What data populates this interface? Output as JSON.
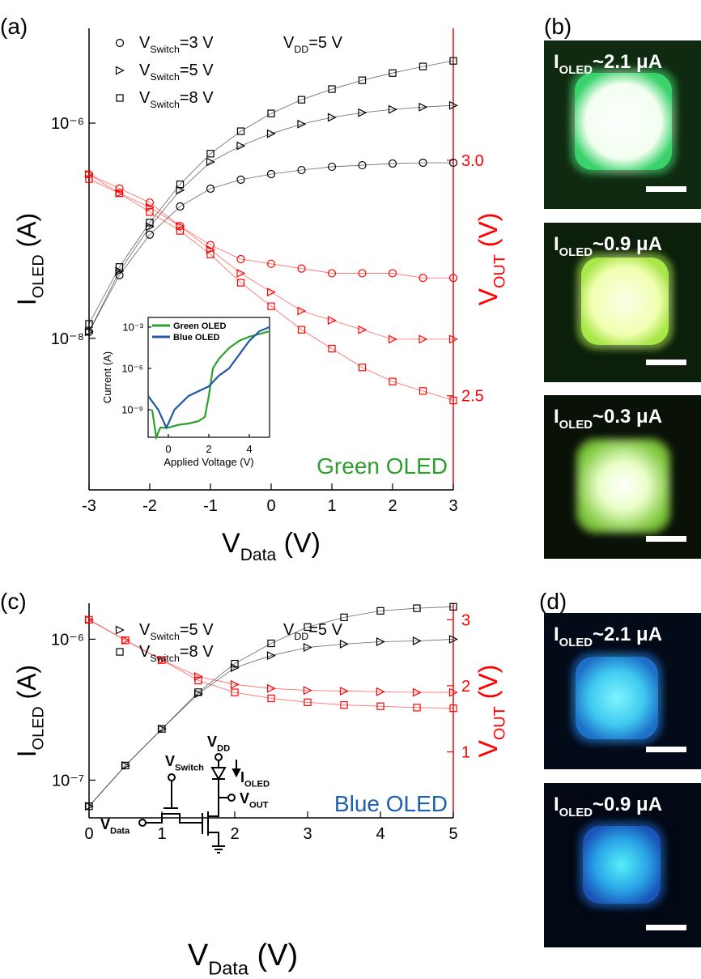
{
  "chart_data": [
    {
      "type": "scatter",
      "title": "(a)",
      "xlabel": [
        "V",
        "Data",
        " (V)"
      ],
      "ylabel": [
        "I",
        "OLED",
        " (A)"
      ],
      "y2label": [
        "V",
        "OUT",
        " (V)"
      ],
      "x": [
        -3,
        -2.5,
        -2,
        -1.5,
        -1,
        -0.5,
        0,
        0.5,
        1,
        1.5,
        2,
        2.5,
        3
      ],
      "xlim": [
        -3,
        3
      ],
      "xticks": [
        -3,
        -2,
        -1,
        0,
        1,
        2,
        3
      ],
      "yscale": "log",
      "ylim": [
        3.9e-10,
        7.6e-06
      ],
      "yticks": [
        {
          "value": 1e-06,
          "label": "10⁻⁶"
        },
        {
          "value": 1e-08,
          "label": "10⁻⁸"
        }
      ],
      "y2lim": [
        2.3,
        3.28
      ],
      "y2ticks": [
        2.5,
        {
          "value": 3,
          "label": "3.0"
        }
      ],
      "y2color": "#ff0000",
      "legend_note": [
        "V",
        "DD",
        "=5 V"
      ],
      "annotation": "Green OLED",
      "annotation_color": "#2ca02c",
      "series": [
        {
          "name": [
            "V",
            "Switch",
            "=3 V"
          ],
          "marker": "circle",
          "color": "#000000",
          "values": [
            1.15e-08,
            3.86e-08,
            9.2e-08,
            1.68e-07,
            2.46e-07,
            2.98e-07,
            3.36e-07,
            3.66e-07,
            3.93e-07,
            4.06e-07,
            4.21e-07,
            4.28e-07,
            4.28e-07
          ]
        },
        {
          "name": [
            "V",
            "Switch",
            "=5 V"
          ],
          "marker": "triangle",
          "color": "#000000",
          "values": [
            1.15e-08,
            4.2e-08,
            1.09e-07,
            2.38e-07,
            4.36e-07,
            6.15e-07,
            7.98e-07,
            9.8e-07,
            1.13e-06,
            1.25e-06,
            1.34e-06,
            1.41e-06,
            1.46e-06
          ]
        },
        {
          "name": [
            "V",
            "Switch",
            "=8 V"
          ],
          "marker": "square",
          "color": "#000000",
          "values": [
            1.36e-08,
            4.6e-08,
            1.19e-07,
            2.7e-07,
            5.2e-07,
            8.4e-07,
            1.23e-06,
            1.65e-06,
            2.07e-06,
            2.5e-06,
            2.92e-06,
            3.36e-06,
            3.79e-06
          ]
        },
        {
          "marker": "circle",
          "color": "#ff0000",
          "axis": "y2",
          "values": [
            2.97,
            2.94,
            2.91,
            2.86,
            2.82,
            2.79,
            2.78,
            2.77,
            2.76,
            2.76,
            2.76,
            2.75,
            2.75
          ]
        },
        {
          "marker": "triangle",
          "color": "#ff0000",
          "axis": "y2",
          "values": [
            2.97,
            2.93,
            2.9,
            2.86,
            2.81,
            2.76,
            2.72,
            2.68,
            2.66,
            2.64,
            2.62,
            2.62,
            2.62
          ]
        },
        {
          "marker": "square",
          "color": "#ff0000",
          "axis": "y2",
          "values": [
            2.96,
            2.93,
            2.89,
            2.85,
            2.8,
            2.74,
            2.69,
            2.64,
            2.6,
            2.56,
            2.53,
            2.51,
            2.49
          ]
        }
      ]
    },
    {
      "type": "line",
      "xlabel": "Applied Voltage (V)",
      "ylabel": "Current (A)",
      "xlim": [
        -1,
        5
      ],
      "xticks": [
        0,
        2,
        4
      ],
      "yscale": "log",
      "ylim": [
        1e-11,
        0.005
      ],
      "yticks": [
        {
          "value": 0.001,
          "label": "10⁻³"
        },
        {
          "value": 1e-06,
          "label": "10⁻⁶"
        },
        {
          "value": 1e-09,
          "label": "10⁻⁹"
        }
      ],
      "series": [
        {
          "name": "Green OLED",
          "color": "#2ca02c",
          "x": [
            -0.8,
            -0.6,
            -0.4,
            0,
            0.5,
            1,
            1.5,
            1.8,
            2,
            2.2,
            2.5,
            3,
            3.5,
            4,
            5
          ],
          "values": [
            1e-09,
            1e-11,
            5e-11,
            5e-11,
            8e-11,
            1e-10,
            1.5e-10,
            3e-10,
            1e-08,
            1e-06,
            5e-06,
            3e-05,
            0.0001,
            0.0002,
            0.0005
          ]
        },
        {
          "name": "Blue OLED",
          "color": "#2357a8",
          "x": [
            -1,
            -0.5,
            -0.1,
            0,
            0.3,
            1,
            2,
            2.5,
            3,
            3.5,
            4,
            4.5,
            5
          ],
          "values": [
            1e-08,
            1e-09,
            5e-11,
            1e-10,
            1e-09,
            1e-08,
            5e-08,
            3e-07,
            1e-06,
            1e-05,
            0.0001,
            0.0005,
            0.001
          ]
        }
      ]
    },
    {
      "type": "scatter",
      "title": "(c)",
      "xlabel": [
        "V",
        "Data",
        " (V)"
      ],
      "ylabel": [
        "I",
        "OLED",
        " (A)"
      ],
      "y2label": [
        "V",
        "OUT",
        " (V)"
      ],
      "x": [
        0,
        0.5,
        1,
        1.5,
        2,
        2.5,
        3,
        3.5,
        4,
        4.5,
        5
      ],
      "xlim": [
        0,
        5
      ],
      "xticks": [
        0,
        1,
        2,
        3,
        4,
        5
      ],
      "yscale": "log",
      "ylim": [
        5.4e-08,
        1.8e-06
      ],
      "yticks": [
        {
          "value": 1e-06,
          "label": "10⁻⁶"
        },
        {
          "value": 1e-07,
          "label": "10⁻⁷"
        }
      ],
      "y2lim": [
        0,
        3.25
      ],
      "y2ticks": [
        1,
        2,
        3
      ],
      "y2color": "#ff0000",
      "legend_note": [
        "V",
        "DD",
        "=5 V"
      ],
      "annotation": "Blue OLED",
      "annotation_color": "#1f5fb4",
      "circuit": [
        [
          "V",
          "DD"
        ],
        [
          "V",
          "Switch"
        ],
        [
          "I",
          "OLED"
        ],
        [
          "V",
          "OUT"
        ],
        [
          "V",
          "Data"
        ]
      ],
      "series": [
        {
          "name": [
            "V",
            "Switch",
            "=5 V"
          ],
          "marker": "triangle",
          "color": "#000000",
          "values": [
            6.53e-08,
            1.27e-07,
            2.31e-07,
            4.1e-07,
            6.28e-07,
            7.66e-07,
            8.75e-07,
            9.24e-07,
            9.6e-07,
            9.73e-07,
            1e-06
          ]
        },
        {
          "name": [
            "V",
            "Switch",
            "=8 V"
          ],
          "marker": "square",
          "color": "#000000",
          "values": [
            6.53e-08,
            1.27e-07,
            2.31e-07,
            4.21e-07,
            6.71e-07,
            9.35e-07,
            1.22e-06,
            1.43e-06,
            1.59e-06,
            1.66e-06,
            1.7e-06
          ]
        },
        {
          "marker": "triangle",
          "color": "#ff0000",
          "axis": "y2",
          "values": [
            3.0,
            2.69,
            2.39,
            2.14,
            2.02,
            1.96,
            1.93,
            1.92,
            1.91,
            1.9,
            1.9
          ]
        },
        {
          "marker": "square",
          "color": "#ff0000",
          "axis": "y2",
          "values": [
            3.0,
            2.69,
            2.39,
            2.08,
            1.9,
            1.81,
            1.75,
            1.71,
            1.69,
            1.67,
            1.66
          ]
        }
      ]
    }
  ],
  "images": [
    {
      "title": "(b)",
      "labels": [
        [
          "I",
          "OLED",
          "~2.1 μA"
        ],
        [
          "I",
          "OLED",
          "~0.9 μA"
        ],
        [
          "I",
          "OLED",
          "~0.3 μA"
        ]
      ]
    },
    {
      "title": "(d)",
      "labels": [
        [
          "I",
          "OLED",
          "~2.1 μA"
        ],
        [
          "I",
          "OLED",
          "~0.9 μA"
        ]
      ]
    }
  ]
}
